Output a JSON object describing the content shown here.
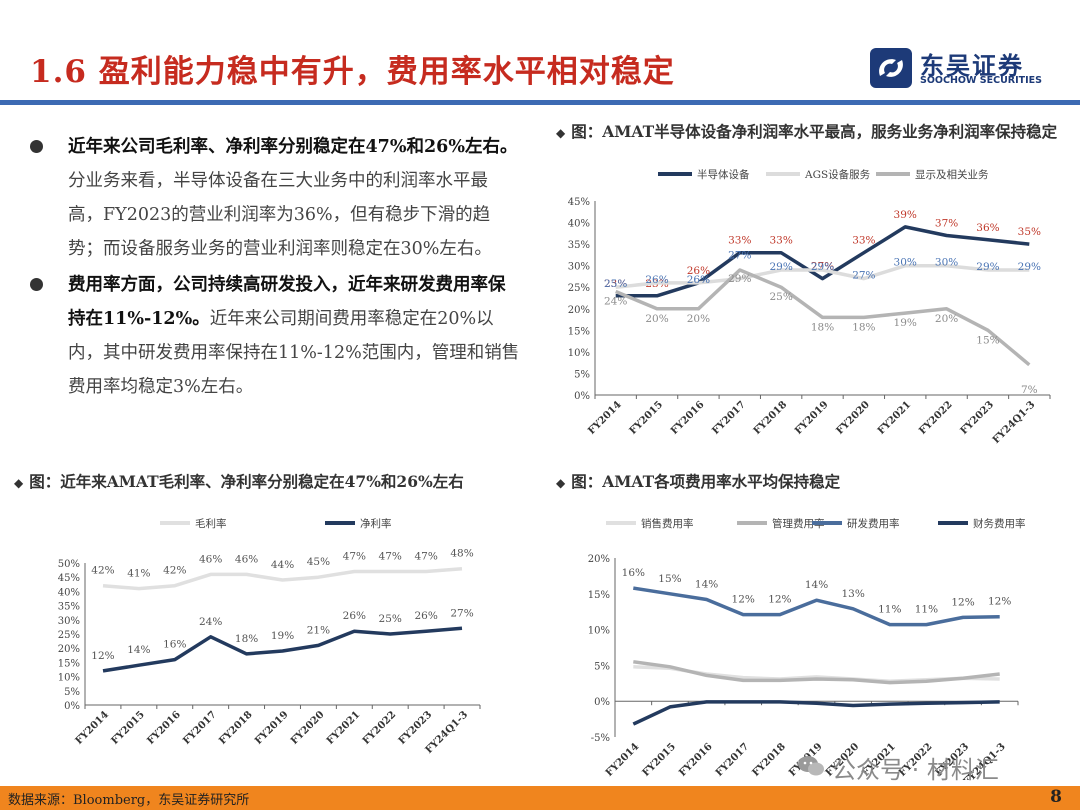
{
  "header": {
    "title": "1.6 盈利能力稳中有升，费用率水平相对稳定",
    "logo_cn": "东吴证券",
    "logo_en": "SOOCHOW SECURITIES"
  },
  "bullets": [
    {
      "bold": "近年来公司毛利率、净利率分别稳定在47%和26%左右。",
      "text": "分业务来看，半导体设备在三大业务中的利润率水平最高，FY2023的营业利润率为36%，但有稳步下滑的趋势；而设备服务业务的营业利润率则稳定在30%左右。"
    },
    {
      "bold": "费用率方面，公司持续高研发投入，近年来研发费用率保持在11%-12%。",
      "text": "近年来公司期间费用率稳定在20%以内，其中研发费用率保持在11%-12%范围内，管理和销售费用率均稳定3%左右。"
    }
  ],
  "chart_titles": {
    "segments": "图：AMAT半导体设备净利润率水平最高，服务业务净利润率保持稳定",
    "margins": "图：近年来AMAT毛利率、净利率分别稳定在47%和26%左右",
    "expenses": "图：AMAT各项费用率水平均保持稳定"
  },
  "chart_data": [
    {
      "id": "segments",
      "type": "line",
      "categories": [
        "FY2014",
        "FY2015",
        "FY2016",
        "FY2017",
        "FY2018",
        "FY2019",
        "FY2020",
        "FY2021",
        "FY2022",
        "FY2023",
        "FY24Q1-3"
      ],
      "ylim": [
        0,
        45
      ],
      "yticks": [
        "0%",
        "5%",
        "10%",
        "15%",
        "20%",
        "25%",
        "30%",
        "35%",
        "40%",
        "45%"
      ],
      "series": [
        {
          "name": "半导体设备",
          "color": "#233a5e",
          "label_color": "#c0392b",
          "values": [
            23,
            23,
            26,
            33,
            33,
            27,
            33,
            39,
            37,
            36,
            35
          ]
        },
        {
          "name": "AGS设备服务",
          "color": "#dcdcdc",
          "label_color": "#4a74b4",
          "values": [
            25,
            26,
            26,
            27,
            29,
            29,
            27,
            30,
            30,
            29,
            29
          ]
        },
        {
          "name": "显示及相关业务",
          "color": "#b4b4b4",
          "label_color": "#8c8c8c",
          "values": [
            24,
            20,
            20,
            29,
            25,
            18,
            18,
            19,
            20,
            15,
            7
          ]
        }
      ]
    },
    {
      "id": "margins",
      "type": "line",
      "categories": [
        "FY2014",
        "FY2015",
        "FY2016",
        "FY2017",
        "FY2018",
        "FY2019",
        "FY2020",
        "FY2021",
        "FY2022",
        "FY2023",
        "FY24Q1-3"
      ],
      "ylim": [
        0,
        50
      ],
      "yticks": [
        "0%",
        "5%",
        "10%",
        "15%",
        "20%",
        "25%",
        "30%",
        "35%",
        "40%",
        "45%",
        "50%"
      ],
      "series": [
        {
          "name": "毛利率",
          "color": "#e0e0e0",
          "label_color": "#555555",
          "values": [
            42,
            41,
            42,
            46,
            46,
            44,
            45,
            47,
            47,
            47,
            48
          ]
        },
        {
          "name": "净利率",
          "color": "#233a5e",
          "label_color": "#555555",
          "values": [
            12,
            14,
            16,
            24,
            18,
            19,
            21,
            26,
            25,
            26,
            27
          ]
        }
      ]
    },
    {
      "id": "expenses",
      "type": "line",
      "categories": [
        "FY2014",
        "FY2015",
        "FY2016",
        "FY2017",
        "FY2018",
        "FY2019",
        "FY2020",
        "FY2021",
        "FY2022",
        "FY2023",
        "FY24Q1-3"
      ],
      "ylim": [
        -5,
        20
      ],
      "yticks": [
        "-5%",
        "0%",
        "5%",
        "10%",
        "15%",
        "20%"
      ],
      "series": [
        {
          "name": "销售费用率",
          "color": "#e0e0e0",
          "values": [
            4.8,
            4.6,
            3.8,
            3.3,
            3.1,
            3.4,
            3.1,
            2.8,
            3.0,
            3.2,
            3.1
          ]
        },
        {
          "name": "管理费用率",
          "color": "#b4b4b4",
          "values": [
            5.5,
            4.8,
            3.6,
            2.9,
            2.9,
            3.1,
            3.0,
            2.6,
            2.8,
            3.2,
            3.8
          ]
        },
        {
          "name": "研发费用率",
          "color": "#4a6d9c",
          "label_color": "#555555",
          "values": [
            15.8,
            15,
            14.2,
            12.1,
            12.1,
            14.1,
            12.9,
            10.7,
            10.7,
            11.7,
            11.8
          ],
          "labels": [
            "16%",
            "15%",
            "14%",
            "12%",
            "12%",
            "14%",
            "13%",
            "11%",
            "11%",
            "12%",
            "12%"
          ]
        },
        {
          "name": "财务费用率",
          "color": "#233a5e",
          "values": [
            -3.2,
            -0.8,
            -0.1,
            -0.1,
            -0.1,
            -0.3,
            -0.6,
            -0.4,
            -0.3,
            -0.2,
            -0.1
          ]
        }
      ]
    }
  ],
  "footer": {
    "source": "数据来源：Bloomberg，东吴证券研究所",
    "page": "8",
    "watermark": "公众号 · 材料汇"
  }
}
